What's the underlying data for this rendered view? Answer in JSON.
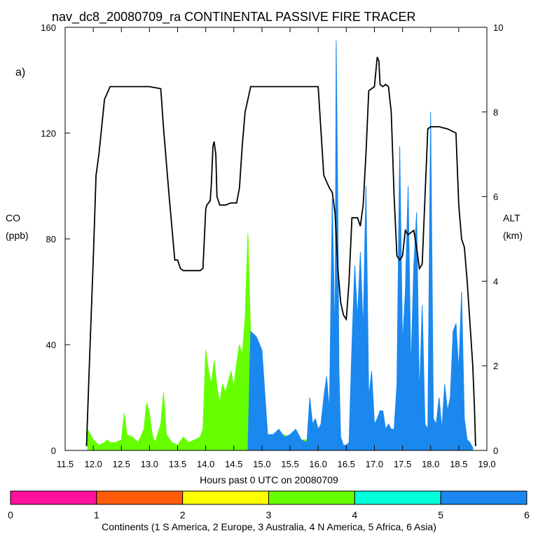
{
  "chart_data": {
    "type": "area",
    "title": "nav_dc8_20080709_ra CONTINENTAL PASSIVE FIRE TRACER",
    "panel_label": "a)",
    "xlabel": "Hours past 0 UTC on 20080709",
    "ylabel_left": [
      "CO",
      "(ppb)"
    ],
    "ylabel_right": [
      "ALT",
      "(km)"
    ],
    "xlim": [
      11.5,
      19.0
    ],
    "ylim_left": [
      0,
      160
    ],
    "ylim_right": [
      0,
      10
    ],
    "x_ticks": [
      "11.5",
      "12.0",
      "12.5",
      "13.0",
      "13.5",
      "14.0",
      "14.5",
      "15.0",
      "15.5",
      "16.0",
      "16.5",
      "17.0",
      "17.5",
      "18.0",
      "18.5",
      "19.0"
    ],
    "y_left_ticks": [
      "0",
      "40",
      "80",
      "120",
      "160"
    ],
    "y_right_ticks": [
      "0",
      "2",
      "4",
      "6",
      "8",
      "10"
    ],
    "colorbar": {
      "label": "Continents (1 S America, 2 Europe, 3 Australia, 4 N America, 5 Africa, 6 Asia)",
      "ticks": [
        "0",
        "1",
        "2",
        "3",
        "4",
        "5",
        "6"
      ],
      "colors": [
        "#ff11a0",
        "#ff5a0a",
        "#ffff00",
        "#66ff00",
        "#00ffdd",
        "#1a88ee"
      ]
    },
    "series": [
      {
        "name": "CO (N America)",
        "color": "#66ff00",
        "axis": "left",
        "x": [
          11.9,
          12.0,
          12.1,
          12.2,
          12.25,
          12.3,
          12.4,
          12.5,
          12.55,
          12.6,
          12.7,
          12.8,
          12.9,
          12.95,
          13.0,
          13.05,
          13.1,
          13.2,
          13.25,
          13.3,
          13.4,
          13.5,
          13.6,
          13.7,
          13.8,
          13.9,
          13.95,
          14.0,
          14.05,
          14.1,
          14.15,
          14.2,
          14.25,
          14.3,
          14.35,
          14.4,
          14.45,
          14.5,
          14.55,
          14.6,
          14.65,
          14.7,
          14.75,
          14.8,
          14.85,
          14.9,
          14.95,
          15.0,
          15.1,
          15.2,
          15.3,
          15.4,
          15.5,
          15.6,
          15.7,
          15.8,
          15.9,
          16.0,
          16.5,
          16.6,
          16.7,
          17.0,
          17.5,
          18.0,
          18.1,
          18.3,
          18.4,
          18.5,
          18.6,
          18.7,
          18.75
        ],
        "values": [
          8,
          4,
          2,
          3,
          4,
          3,
          3,
          4,
          14,
          6,
          5,
          3,
          8,
          18,
          14,
          6,
          3,
          10,
          22,
          6,
          3,
          2,
          5,
          3,
          4,
          5,
          8,
          38,
          30,
          25,
          34,
          24,
          18,
          25,
          22,
          26,
          30,
          24,
          33,
          40,
          36,
          50,
          82,
          42,
          38,
          40,
          34,
          26,
          4,
          3,
          5,
          6,
          4,
          3,
          4,
          4,
          2,
          1,
          1,
          0,
          1,
          1,
          1,
          1,
          1,
          1,
          1,
          2,
          4,
          2,
          0
        ]
      },
      {
        "name": "CO (Asia)",
        "color": "#1a88ee",
        "axis": "left",
        "x": [
          11.9,
          13.5,
          14.0,
          14.5,
          14.75,
          14.8,
          14.9,
          15.0,
          15.1,
          15.2,
          15.3,
          15.4,
          15.5,
          15.6,
          15.7,
          15.8,
          15.85,
          15.9,
          15.95,
          16.0,
          16.05,
          16.1,
          16.15,
          16.2,
          16.25,
          16.3,
          16.32,
          16.35,
          16.37,
          16.4,
          16.45,
          16.5,
          16.55,
          16.6,
          16.65,
          16.7,
          16.75,
          16.8,
          16.85,
          16.9,
          16.95,
          17.0,
          17.05,
          17.1,
          17.15,
          17.2,
          17.25,
          17.3,
          17.35,
          17.4,
          17.45,
          17.5,
          17.55,
          17.6,
          17.65,
          17.7,
          17.75,
          17.8,
          17.85,
          17.9,
          17.95,
          18.0,
          18.05,
          18.1,
          18.15,
          18.2,
          18.25,
          18.3,
          18.35,
          18.4,
          18.45,
          18.5,
          18.55,
          18.6,
          18.65,
          18.7,
          18.75
        ],
        "values": [
          0,
          0,
          0,
          0,
          0,
          45,
          43,
          38,
          6,
          6,
          8,
          5,
          6,
          8,
          4,
          3,
          20,
          10,
          12,
          8,
          10,
          20,
          28,
          15,
          95,
          40,
          155,
          90,
          30,
          5,
          2,
          2,
          3,
          40,
          70,
          50,
          75,
          45,
          100,
          20,
          30,
          10,
          12,
          15,
          15,
          8,
          10,
          8,
          8,
          25,
          115,
          40,
          60,
          100,
          30,
          70,
          90,
          20,
          55,
          10,
          8,
          128,
          12,
          10,
          20,
          8,
          25,
          15,
          20,
          45,
          48,
          30,
          60,
          12,
          4,
          3,
          1
        ]
      }
    ],
    "altitude": {
      "name": "Altitude",
      "color": "#000000",
      "axis": "right",
      "x": [
        11.88,
        11.93,
        12.0,
        12.05,
        12.1,
        12.2,
        12.3,
        12.35,
        12.5,
        12.8,
        13.0,
        13.2,
        13.25,
        13.35,
        13.43,
        13.45,
        13.5,
        13.55,
        13.6,
        13.7,
        13.8,
        13.9,
        13.95,
        14.0,
        14.02,
        14.08,
        14.1,
        14.13,
        14.15,
        14.18,
        14.2,
        14.25,
        14.35,
        14.45,
        14.55,
        14.6,
        14.65,
        14.7,
        14.75,
        14.8,
        14.9,
        15.0,
        15.5,
        16.0,
        16.1,
        16.2,
        16.25,
        16.3,
        16.35,
        16.4,
        16.45,
        16.5,
        16.55,
        16.6,
        16.7,
        16.75,
        16.8,
        16.85,
        16.9,
        17.0,
        17.05,
        17.08,
        17.1,
        17.15,
        17.2,
        17.25,
        17.3,
        17.35,
        17.4,
        17.45,
        17.5,
        17.55,
        17.6,
        17.7,
        17.75,
        17.8,
        17.85,
        17.9,
        17.95,
        18.0,
        18.05,
        18.1,
        18.15,
        18.3,
        18.45,
        18.5,
        18.55,
        18.6,
        18.65,
        18.7,
        18.75,
        18.78,
        18.8
      ],
      "values": [
        0.1,
        2,
        4.5,
        6.5,
        7,
        8.3,
        8.6,
        8.6,
        8.6,
        8.6,
        8.6,
        8.55,
        7.6,
        6,
        4.8,
        4.5,
        4.5,
        4.3,
        4.25,
        4.25,
        4.25,
        4.25,
        4.3,
        5.7,
        5.8,
        5.9,
        6.3,
        7.2,
        7.3,
        7,
        6,
        5.8,
        5.8,
        5.85,
        5.85,
        6.2,
        7.2,
        8,
        8.3,
        8.6,
        8.6,
        8.6,
        8.6,
        8.6,
        6.5,
        6.2,
        6.1,
        5.6,
        4.3,
        3.5,
        3.2,
        3.1,
        4,
        5.5,
        5.5,
        5.3,
        5.8,
        7,
        8.5,
        8.6,
        9.3,
        9.2,
        8.65,
        8.6,
        8.65,
        8.6,
        8,
        6,
        4.6,
        4.5,
        4.6,
        5.2,
        5.1,
        5.2,
        4.8,
        4.3,
        4.4,
        6,
        7.6,
        7.65,
        7.65,
        7.65,
        7.65,
        7.6,
        7.5,
        5.8,
        5,
        4.8,
        4,
        3,
        2,
        1,
        0.1
      ]
    }
  }
}
